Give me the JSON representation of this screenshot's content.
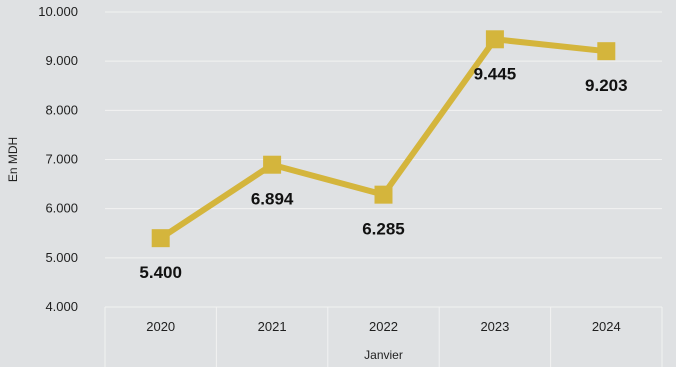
{
  "chart_data": {
    "type": "line",
    "title": "",
    "xlabel": "Janvier",
    "ylabel": "En MDH",
    "categories": [
      "2020",
      "2021",
      "2022",
      "2023",
      "2024"
    ],
    "series": [
      {
        "values": [
          5400,
          6894,
          6285,
          9445,
          9203
        ],
        "value_labels": [
          "5.400",
          "6.894",
          "6.285",
          "9.445",
          "9.203"
        ]
      }
    ],
    "ylim": [
      4000,
      10000
    ],
    "yticks": [
      4000,
      5000,
      6000,
      7000,
      8000,
      9000,
      10000
    ],
    "ytick_labels": [
      "4.000",
      "5.000",
      "6.000",
      "7.000",
      "8.000",
      "9.000",
      "10.000"
    ],
    "grid": true,
    "legend": "none",
    "colors": {
      "series": "#d4b53c",
      "gridline": "#f2f2f2",
      "background": "#dfe1e3"
    }
  }
}
